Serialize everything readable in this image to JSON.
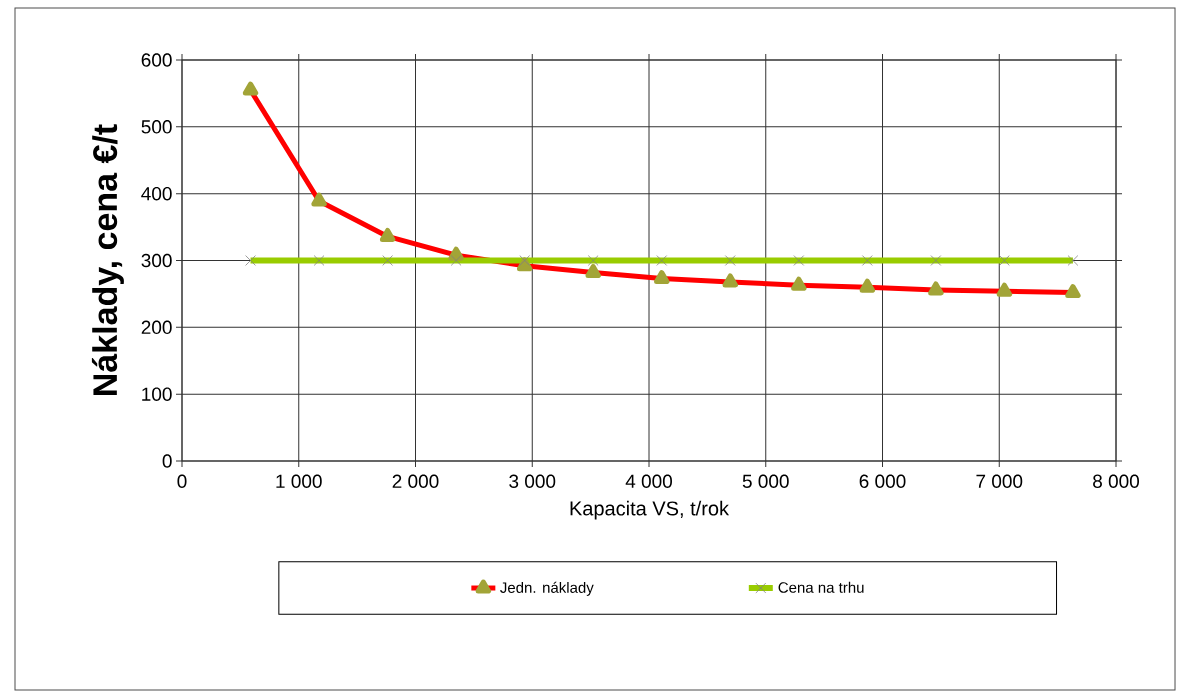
{
  "chart_data": {
    "type": "line",
    "xlabel": "Kapacita VS, t/rok",
    "ylabel": "Náklady, cena €/t",
    "x": [
      587,
      1174,
      1761,
      2348,
      2935,
      3522,
      4109,
      4696,
      5283,
      5870,
      6457,
      7044,
      7631
    ],
    "series": [
      {
        "name": "Jedn. náklady",
        "color": "#ff0000",
        "marker": "triangle",
        "values": [
          555,
          389,
          336,
          308,
          292,
          282,
          273,
          268,
          263,
          260,
          256,
          254,
          252
        ]
      },
      {
        "name": "Cena na trhu",
        "color": "#99cc00",
        "marker": "cross",
        "values": [
          300,
          300,
          300,
          300,
          300,
          300,
          300,
          300,
          300,
          300,
          300,
          300,
          300
        ]
      }
    ],
    "xlim": [
      0,
      8000
    ],
    "ylim": [
      0,
      600
    ],
    "xticks": [
      0,
      {
        "value": 1000,
        "label": "1 000"
      },
      {
        "value": 2000,
        "label": "2 000"
      },
      {
        "value": 3000,
        "label": "3 000"
      },
      {
        "value": 4000,
        "label": "4 000"
      },
      {
        "value": 5000,
        "label": "5 000"
      },
      {
        "value": 6000,
        "label": "6 000"
      },
      {
        "value": 7000,
        "label": "7 000"
      },
      {
        "value": 8000,
        "label": "8 000"
      }
    ],
    "yticks": [
      0,
      100,
      200,
      300,
      400,
      500,
      600
    ],
    "grid": true,
    "legend": "bottom",
    "line_style": "solid"
  }
}
